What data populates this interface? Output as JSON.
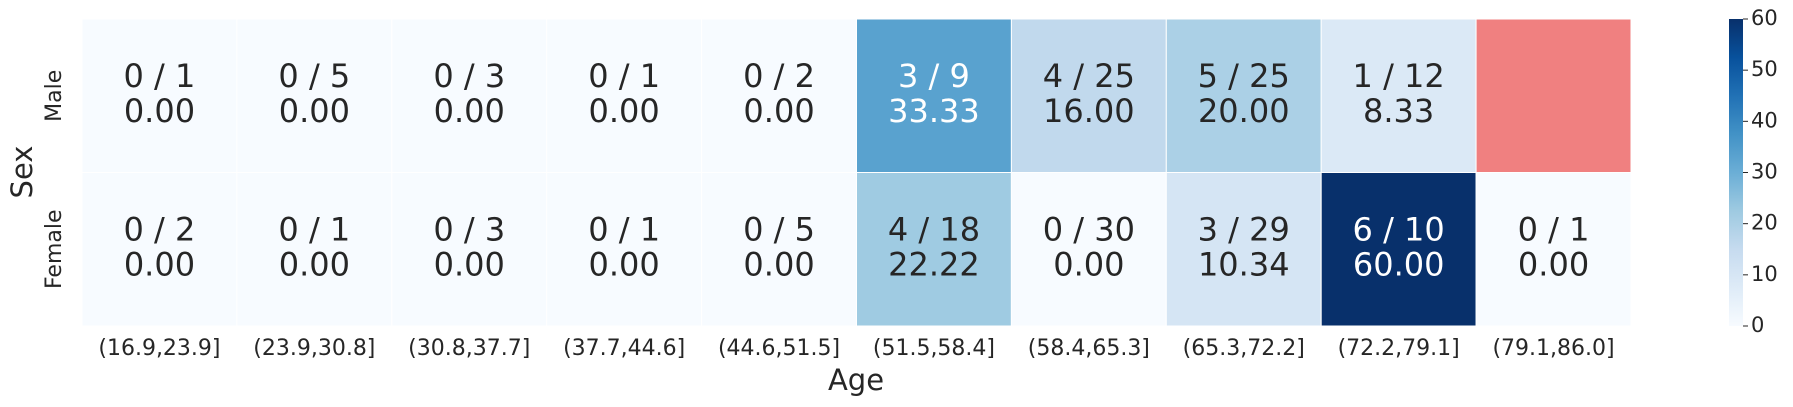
{
  "chart_data": {
    "type": "heatmap",
    "x_label": "Age",
    "y_label": "Sex",
    "x_categories": [
      "(16.9,23.9]",
      "(23.9,30.8]",
      "(30.8,37.7]",
      "(37.7,44.6]",
      "(44.6,51.5]",
      "(51.5,58.4]",
      "(58.4,65.3]",
      "(65.3,72.2]",
      "(72.2,79.1]",
      "(79.1,86.0]"
    ],
    "y_categories": [
      "Male",
      "Female"
    ],
    "values": [
      [
        0,
        0,
        0,
        0,
        0,
        33.33,
        16,
        20,
        8.33,
        null
      ],
      [
        0,
        0,
        0,
        0,
        0,
        22.22,
        0,
        10.34,
        60,
        0
      ]
    ],
    "value_labels": [
      [
        "0.00",
        "0.00",
        "0.00",
        "0.00",
        "0.00",
        "33.33",
        "16.00",
        "20.00",
        "8.33",
        null
      ],
      [
        "0.00",
        "0.00",
        "0.00",
        "0.00",
        "0.00",
        "22.22",
        "0.00",
        "10.34",
        "60.00",
        "0.00"
      ]
    ],
    "annotations": [
      [
        "0 / 1",
        "0 / 5",
        "0 / 3",
        "0 / 1",
        "0 / 2",
        "3 / 9",
        "4 / 25",
        "5 / 25",
        "1 / 12",
        null
      ],
      [
        "0 / 2",
        "0 / 1",
        "0 / 3",
        "0 / 1",
        "0 / 5",
        "4 / 18",
        "0 / 30",
        "3 / 29",
        "6 / 10",
        "0 / 1"
      ]
    ],
    "colormap": "Blues",
    "missing_color": "#f08080",
    "zlim": [
      0,
      60
    ],
    "zticks": [
      0,
      10,
      20,
      30,
      40,
      50,
      60
    ]
  }
}
